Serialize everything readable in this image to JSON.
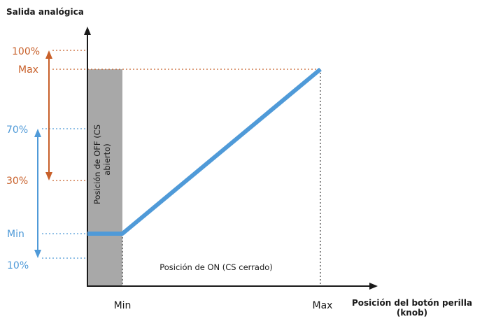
{
  "diagram": {
    "y_axis_title": "Salida analógica",
    "x_axis_title_line1": "Posición del botón perilla",
    "x_axis_title_line2": "(knob)",
    "y_labels": {
      "p100": "100%",
      "max": "Max",
      "p70": "70%",
      "p30": "30%",
      "min": "Min",
      "p10": "10%"
    },
    "x_labels": {
      "min": "Min",
      "max": "Max"
    },
    "off_zone_line1": "Posición de OFF (CS",
    "off_zone_line2": "abierto)",
    "on_zone_label": "Posición de ON (CS cerrado)",
    "colors": {
      "orange": "#c8602a",
      "blue": "#4f9ad8",
      "off_zone": "#a8a8a8",
      "axis": "#1a1a1a"
    }
  }
}
